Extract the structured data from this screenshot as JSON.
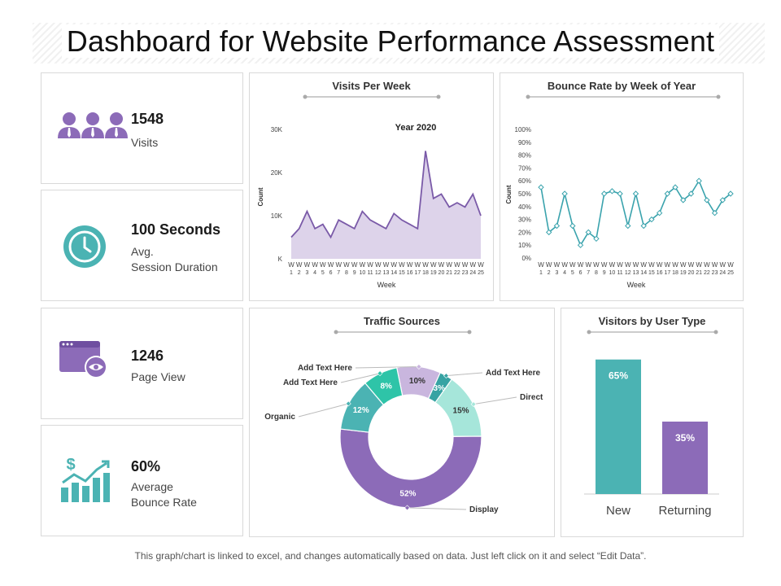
{
  "title": "Dashboard for Website Performance Assessment",
  "colors": {
    "teal": "#4bb3b3",
    "purple": "#8c6bb8",
    "area_fill": "#ddd3ea",
    "area_line": "#7a5aa8",
    "bounce_line": "#3aa3ad"
  },
  "kpis": [
    {
      "icon": "users-icon",
      "value": "1548",
      "label": "Visits"
    },
    {
      "icon": "clock-icon",
      "value": "100 Seconds",
      "label": "Avg.\nSession Duration"
    },
    {
      "icon": "browser-eye-icon",
      "value": "1246",
      "label": "Page View"
    },
    {
      "icon": "bounce-chart-icon",
      "value": "60%",
      "label": "Average\nBounce Rate"
    }
  ],
  "chart_data": [
    {
      "type": "area",
      "title": "Visits Per Week",
      "subtitle": "Year 2020",
      "xlabel": "Week",
      "ylabel": "Count",
      "x": [
        "W1",
        "W2",
        "W3",
        "W4",
        "W5",
        "W6",
        "W7",
        "W8",
        "W9",
        "W10",
        "W11",
        "W12",
        "W13",
        "W14",
        "W15",
        "W16",
        "W17",
        "W18",
        "W19",
        "W20",
        "W21",
        "W22",
        "W23",
        "W24",
        "W25"
      ],
      "values": [
        5000,
        7000,
        11000,
        7000,
        8000,
        5000,
        9000,
        8000,
        7000,
        11000,
        9000,
        8000,
        7000,
        10500,
        9000,
        8000,
        7000,
        25000,
        14000,
        15000,
        12000,
        13000,
        12000,
        15000,
        10000
      ],
      "ylim": [
        0,
        30000
      ],
      "yticks": [
        "K",
        "10K",
        "20K",
        "30K"
      ]
    },
    {
      "type": "line",
      "title": "Bounce Rate by Week of Year",
      "xlabel": "Week",
      "ylabel": "Count",
      "x": [
        "W1",
        "W2",
        "W3",
        "W4",
        "W5",
        "W6",
        "W7",
        "W8",
        "W9",
        "W10",
        "W11",
        "W12",
        "W13",
        "W14",
        "W15",
        "W16",
        "W17",
        "W18",
        "W19",
        "W20",
        "W21",
        "W22",
        "W23",
        "W24",
        "W25"
      ],
      "values": [
        55,
        20,
        25,
        50,
        25,
        10,
        20,
        15,
        50,
        52,
        50,
        25,
        50,
        25,
        30,
        35,
        50,
        55,
        45,
        50,
        60,
        45,
        35,
        45,
        50
      ],
      "ylim": [
        0,
        100
      ],
      "yticks": [
        "0%",
        "10%",
        "20%",
        "30%",
        "40%",
        "50%",
        "60%",
        "70%",
        "80%",
        "90%",
        "100%"
      ]
    },
    {
      "type": "pie",
      "title": "Traffic Sources",
      "slices": [
        {
          "label": "Add Text Here",
          "value": 10,
          "pct": "10%",
          "color": "#c9b6de"
        },
        {
          "label": "Add Text Here",
          "value": 3,
          "pct": "3%",
          "color": "#37a3a3"
        },
        {
          "label": "Direct",
          "value": 15,
          "pct": "15%",
          "color": "#a6e6da"
        },
        {
          "label": "Display",
          "value": 52,
          "pct": "52%",
          "color": "#8c6bb8"
        },
        {
          "label": "Organic",
          "value": 12,
          "pct": "12%",
          "color": "#4bb3b3"
        },
        {
          "label": "Add Text Here",
          "value": 8,
          "pct": "8%",
          "color": "#2ec4a8"
        }
      ]
    },
    {
      "type": "bar",
      "title": "Visitors by User Type",
      "categories": [
        "New",
        "Returning"
      ],
      "values": [
        65,
        35
      ],
      "labels": [
        "65%",
        "35%"
      ],
      "colors": [
        "#4bb3b3",
        "#8c6bb8"
      ],
      "ylim": [
        0,
        70
      ]
    }
  ],
  "footnote": "This graph/chart is linked to excel, and changes automatically based on data. Just left click on it and select “Edit Data”."
}
